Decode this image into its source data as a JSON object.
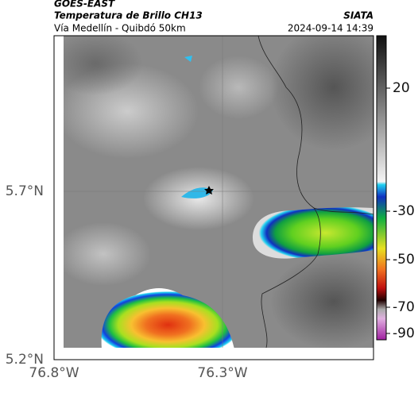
{
  "header": {
    "source": "GOES-EAST",
    "product": "Temperatura de Brillo CH13",
    "agency": "SIATA",
    "route": "Vía Medellín - Quibdó 50km",
    "timestamp": "2024-09-14 14:39"
  },
  "axes": {
    "lat_labels": [
      "5.7°N",
      "5.2°N"
    ],
    "lon_labels": [
      "76.8°W",
      "76.3°W"
    ]
  },
  "colorbar": {
    "ticks": [
      20,
      -30,
      -50,
      -70,
      -90
    ]
  }
}
